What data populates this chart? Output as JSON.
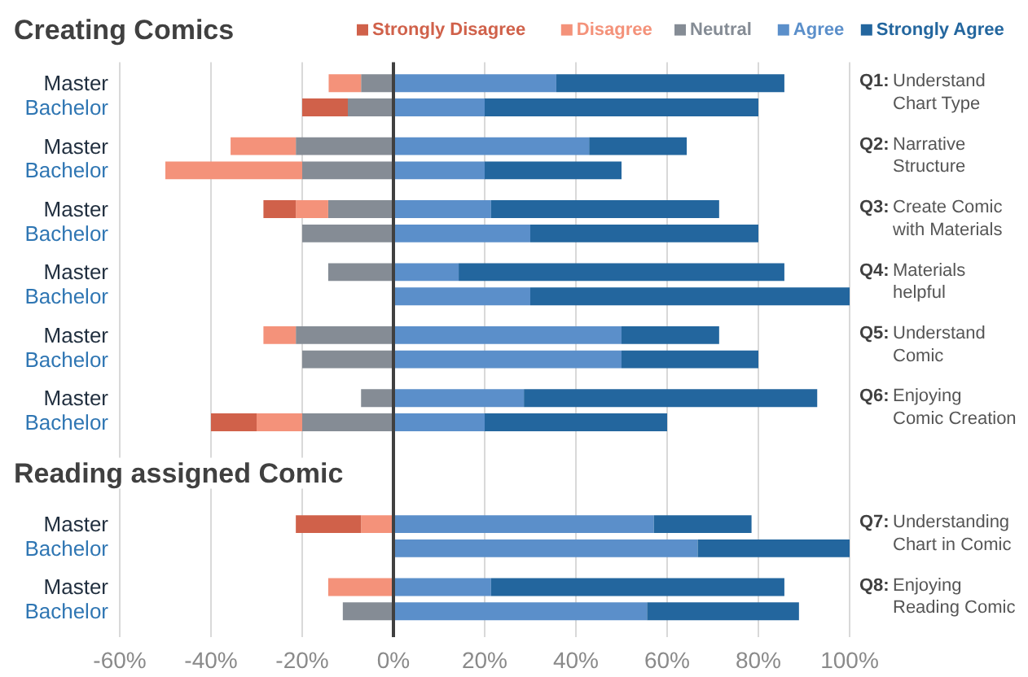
{
  "chart_data": {
    "type": "bar",
    "orientation": "horizontal",
    "stacked": true,
    "title": "Creating Comics",
    "categories": [
      "Master",
      "Bachelor",
      "Master",
      "Bachelor",
      "Master",
      "Bachelor",
      "Master",
      "Bachelor",
      "Master",
      "Bachelor",
      "Master",
      "Bachelor",
      null,
      null,
      "Master",
      "Bachelor",
      "Master",
      "Bachelor"
    ],
    "series": [
      {
        "name": "Neutral",
        "color": "#858c95",
        "values": [
          -7.1,
          -10,
          -21.4,
          -20,
          -14.3,
          -20,
          -14.3,
          null,
          -21.4,
          -20,
          -7.1,
          -20,
          null,
          null,
          null,
          null,
          null,
          -11.1
        ]
      },
      {
        "name": "Disagree",
        "color": "#f4927a",
        "values": [
          -7.1,
          null,
          -14.3,
          -30,
          -7.1,
          null,
          null,
          null,
          -7.1,
          null,
          null,
          -10,
          null,
          null,
          -7.1,
          null,
          -14.3,
          null
        ]
      },
      {
        "name": "Strongly Disagree",
        "color": "#d0614a",
        "values": [
          null,
          -10,
          null,
          null,
          -7.1,
          null,
          null,
          null,
          null,
          null,
          null,
          -10,
          null,
          null,
          -14.3,
          null,
          null,
          null
        ]
      },
      {
        "name": "Agree",
        "color": "#5b8fca",
        "values": [
          35.7,
          20,
          42.9,
          20,
          21.4,
          30,
          14.3,
          30,
          50,
          50,
          28.6,
          20,
          null,
          null,
          57.1,
          66.7,
          21.4,
          55.6
        ]
      },
      {
        "name": "Strongly Agree",
        "color": "#23669e",
        "values": [
          50,
          60,
          21.4,
          30,
          50,
          50,
          71.4,
          70,
          21.4,
          30,
          64.3,
          40,
          null,
          null,
          21.4,
          33.3,
          64.3,
          33.3
        ]
      }
    ],
    "xlim": [
      -60,
      100
    ],
    "xticks": [
      {
        "value": -60,
        "label": "-60%"
      },
      {
        "value": -40,
        "label": "-40%"
      },
      {
        "value": -20,
        "label": "-20%"
      },
      {
        "value": 0,
        "label": "0%"
      },
      {
        "value": 20,
        "label": "20%"
      },
      {
        "value": 40,
        "label": "40%"
      },
      {
        "value": 60,
        "label": "60%"
      },
      {
        "value": 80,
        "label": "80%"
      },
      {
        "value": 100,
        "label": "100%"
      }
    ],
    "grid": "x",
    "legend": "top",
    "annotations": [
      "Reading assigned Comic",
      "Q1: Understand\nChart Type",
      "Q2: Narrative\nStructure",
      "Q3: Create Comic\nwith Materials",
      "Q4: Materials\nhelpful",
      "Q5: Understand\nComic",
      "Q6: Enjoying\nComic Creation",
      "Q7: Understanding\nChart in Comic",
      "Q8: Enjoying\nReading Comic"
    ]
  }
}
